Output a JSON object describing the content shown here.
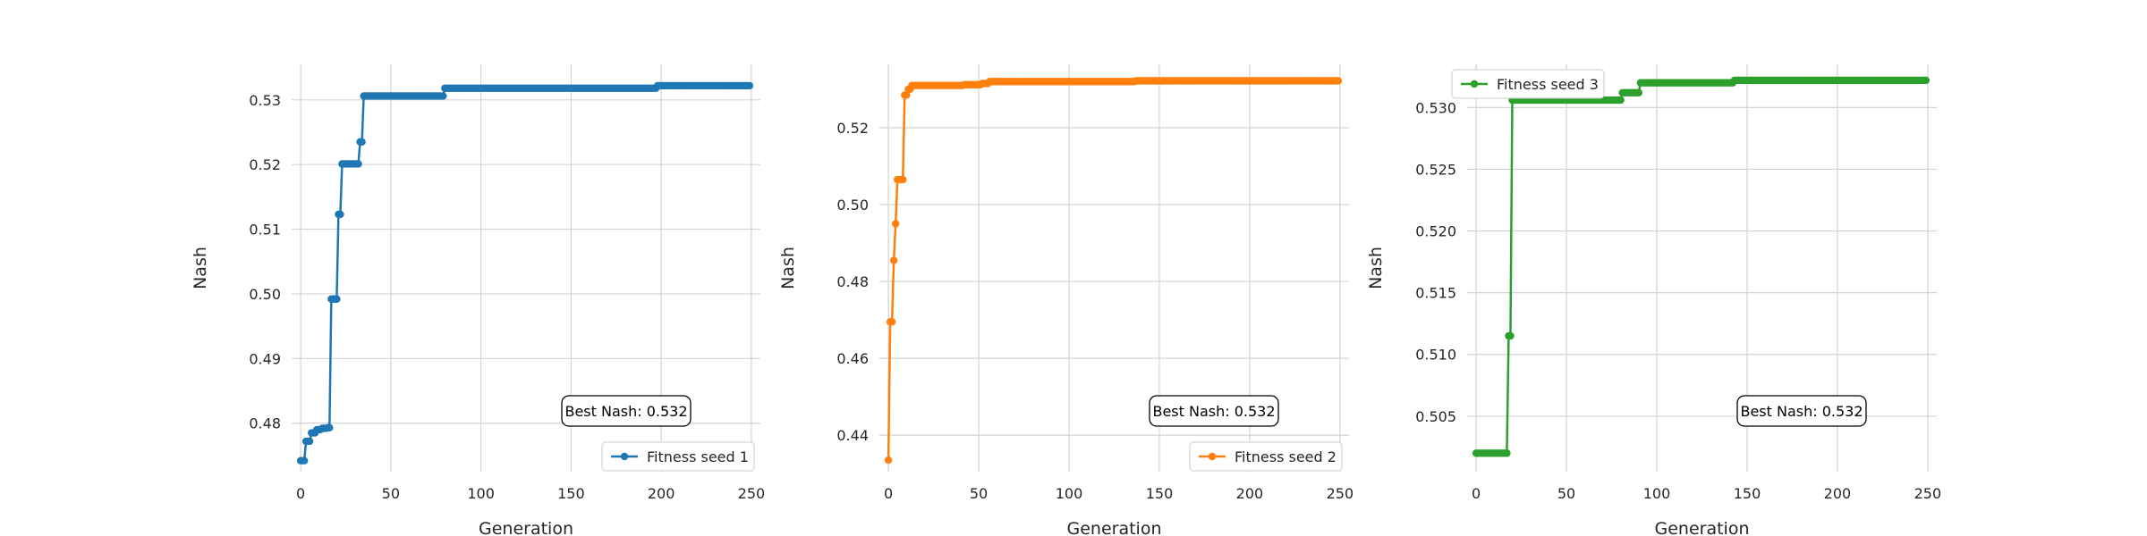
{
  "chart_data": [
    {
      "type": "line",
      "xlabel": "Generation",
      "ylabel": "Nash",
      "xlim": [
        -5,
        255
      ],
      "ylim": [
        0.4725,
        0.5355
      ],
      "xticks": [
        0,
        50,
        100,
        150,
        200,
        250
      ],
      "yticks": [
        0.48,
        0.49,
        0.5,
        0.51,
        0.52,
        0.53
      ],
      "ytick_labels": [
        "0.48",
        "0.49",
        "0.50",
        "0.51",
        "0.52",
        "0.53"
      ],
      "grid": true,
      "legend_position": "lower-right",
      "annotation": "Best Nash: 0.532",
      "series": [
        {
          "name": "Fitness seed 1",
          "color": "#1f77b4",
          "marker": "circle",
          "steps": [
            [
              0,
              0.4742
            ],
            [
              3,
              0.4772
            ],
            [
              6,
              0.4785
            ],
            [
              9,
              0.479
            ],
            [
              12,
              0.4792
            ],
            [
              15,
              0.4793
            ],
            [
              17,
              0.4992
            ],
            [
              21,
              0.5123
            ],
            [
              23,
              0.5201
            ],
            [
              33,
              0.5235
            ],
            [
              35,
              0.5306
            ],
            [
              80,
              0.5318
            ],
            [
              198,
              0.5322
            ],
            [
              249,
              0.5322
            ]
          ]
        }
      ]
    },
    {
      "type": "line",
      "xlabel": "Generation",
      "ylabel": "Nash",
      "xlim": [
        -5,
        255
      ],
      "ylim": [
        0.4305,
        0.5365
      ],
      "xticks": [
        0,
        50,
        100,
        150,
        200,
        250
      ],
      "yticks": [
        0.44,
        0.46,
        0.48,
        0.5,
        0.52
      ],
      "ytick_labels": [
        "0.44",
        "0.46",
        "0.48",
        "0.50",
        "0.52"
      ],
      "grid": true,
      "legend_position": "lower-right",
      "annotation": "Best Nash: 0.532",
      "series": [
        {
          "name": "Fitness seed 2",
          "color": "#ff7f0e",
          "marker": "circle",
          "steps": [
            [
              0,
              0.4335
            ],
            [
              1,
              0.4695
            ],
            [
              3,
              0.4855
            ],
            [
              4,
              0.495
            ],
            [
              5,
              0.5065
            ],
            [
              9,
              0.5285
            ],
            [
              11,
              0.53
            ],
            [
              13,
              0.531
            ],
            [
              42,
              0.5312
            ],
            [
              52,
              0.5315
            ],
            [
              56,
              0.532
            ],
            [
              137,
              0.5322
            ],
            [
              249,
              0.5322
            ]
          ]
        }
      ]
    },
    {
      "type": "line",
      "xlabel": "Generation",
      "ylabel": "Nash",
      "xlim": [
        -5,
        255
      ],
      "ylim": [
        0.5005,
        0.5335
      ],
      "xticks": [
        0,
        50,
        100,
        150,
        200,
        250
      ],
      "yticks": [
        0.505,
        0.51,
        0.515,
        0.52,
        0.525,
        0.53
      ],
      "ytick_labels": [
        "0.505",
        "0.510",
        "0.515",
        "0.520",
        "0.525",
        "0.530"
      ],
      "grid": true,
      "legend_position": "upper-left",
      "annotation": "Best Nash: 0.532",
      "series": [
        {
          "name": "Fitness seed 3",
          "color": "#2ca02c",
          "marker": "circle",
          "steps": [
            [
              0,
              0.502
            ],
            [
              18,
              0.5115
            ],
            [
              20,
              0.5306
            ],
            [
              81,
              0.5312
            ],
            [
              91,
              0.532
            ],
            [
              143,
              0.5322
            ],
            [
              249,
              0.5322
            ]
          ]
        }
      ]
    }
  ]
}
